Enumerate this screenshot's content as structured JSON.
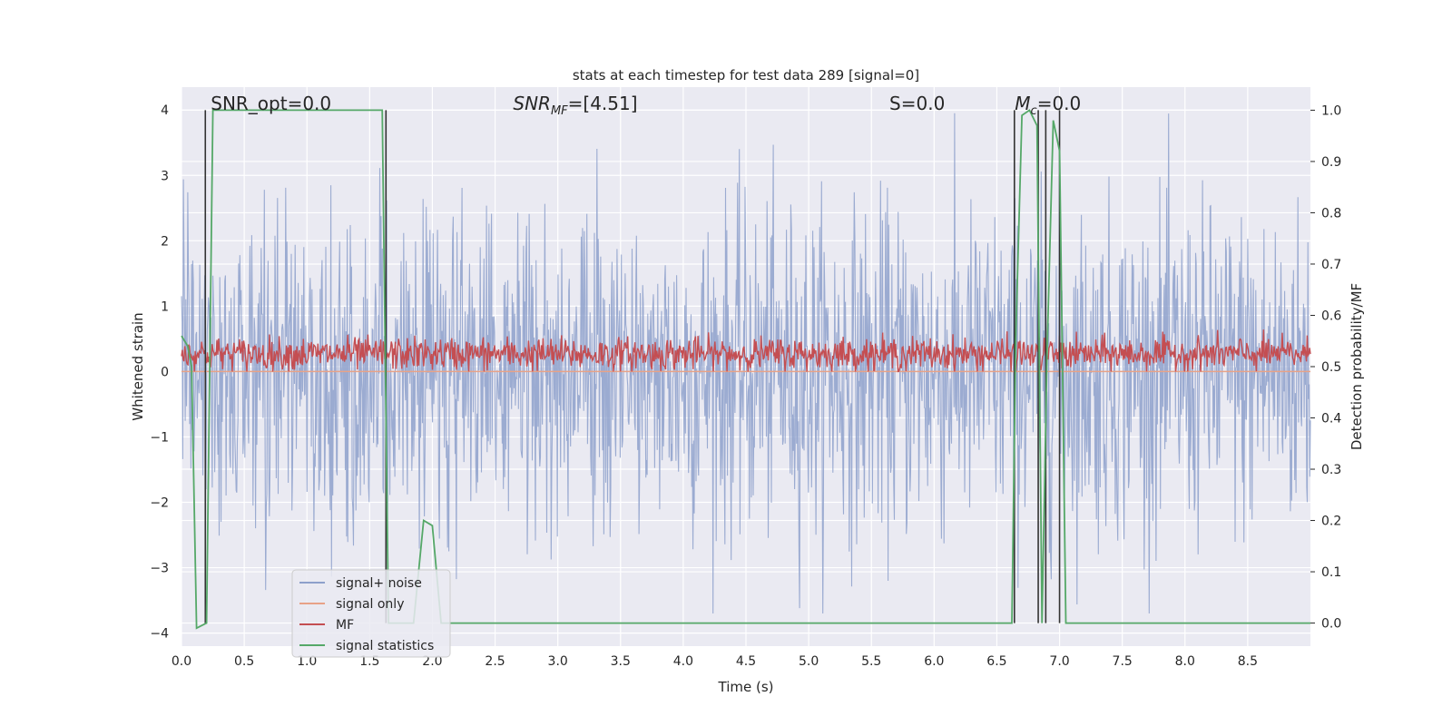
{
  "chart_data": {
    "type": "line",
    "title": "stats at each timestep for test data 289 [signal=0]",
    "xlabel": "Time (s)",
    "ylabel_left": "Whitened strain",
    "ylabel_right": "Detection probability/MF",
    "xlim": [
      0,
      9.0
    ],
    "ylim_left": [
      -4.2,
      4.35
    ],
    "ylim_right": [
      -0.045,
      1.045
    ],
    "x_ticks": [
      "0.0",
      "0.5",
      "1.0",
      "1.5",
      "2.0",
      "2.5",
      "3.0",
      "3.5",
      "4.0",
      "4.5",
      "5.0",
      "5.5",
      "6.0",
      "6.5",
      "7.0",
      "7.5",
      "8.0",
      "8.5"
    ],
    "y_ticks_left": [
      "4",
      "3",
      "2",
      "1",
      "0",
      "−1",
      "−2",
      "−3",
      "−4"
    ],
    "y_ticks_right": [
      "1.0",
      "0.9",
      "0.8",
      "0.7",
      "0.6",
      "0.5",
      "0.4",
      "0.3",
      "0.2",
      "0.1",
      "0.0"
    ],
    "grid": true,
    "annotations": [
      {
        "text": "SNR_opt=0.0",
        "x": 0.19
      },
      {
        "text": "SNR",
        "sub": "MF",
        "suffix": "=[4.51]",
        "x": 2.6
      },
      {
        "text": "S",
        "suffix": "=0.0",
        "x": 5.6
      },
      {
        "text": "M",
        "sub": "c",
        "suffix": "=0.0",
        "x": 6.6
      }
    ],
    "legend": {
      "placement": "lower-left",
      "entries": [
        {
          "name": "signal+ noise",
          "color": "#8da0cb"
        },
        {
          "name": "signal only",
          "color": "#e8a287"
        },
        {
          "name": "MF",
          "color": "#c44e52"
        },
        {
          "name": "signal statistics",
          "color": "#55a868"
        }
      ]
    },
    "series": [
      {
        "name": "signal+ noise",
        "axis": "left",
        "color": "#8da0cb",
        "description_values": {
          "mean": 0.0,
          "std": 1.25,
          "max": 3.95,
          "min": -3.7
        }
      },
      {
        "name": "signal only",
        "axis": "left",
        "color": "#e8a287",
        "x": [
          0,
          9.0
        ],
        "values": [
          0.0,
          0.0
        ]
      },
      {
        "name": "MF",
        "axis": "left",
        "color": "#c44e52",
        "description_values": {
          "mean": 0.27,
          "spread": 0.25,
          "max": 1.0,
          "min": 0.0
        }
      },
      {
        "name": "signal statistics",
        "axis": "right",
        "color": "#55a868",
        "x": [
          0.0,
          0.05,
          0.08,
          0.12,
          0.2,
          0.25,
          0.3,
          1.6,
          1.65,
          1.7,
          1.85,
          1.93,
          2.0,
          2.07,
          2.15,
          6.62,
          6.65,
          6.7,
          6.76,
          6.82,
          6.86,
          6.9,
          6.95,
          7.0,
          7.05,
          9.0
        ],
        "values": [
          0.56,
          0.54,
          0.5,
          -0.01,
          0.0,
          1.0,
          1.0,
          1.0,
          0.0,
          0.0,
          0.0,
          0.2,
          0.19,
          0.0,
          0.0,
          0.0,
          0.55,
          0.99,
          1.0,
          0.97,
          0.0,
          0.52,
          0.98,
          0.92,
          0.0,
          0.0
        ]
      }
    ],
    "vertical_markers": {
      "color": "#333333",
      "x": [
        0.19,
        1.63,
        6.64,
        6.83,
        6.89,
        7.0
      ]
    }
  }
}
